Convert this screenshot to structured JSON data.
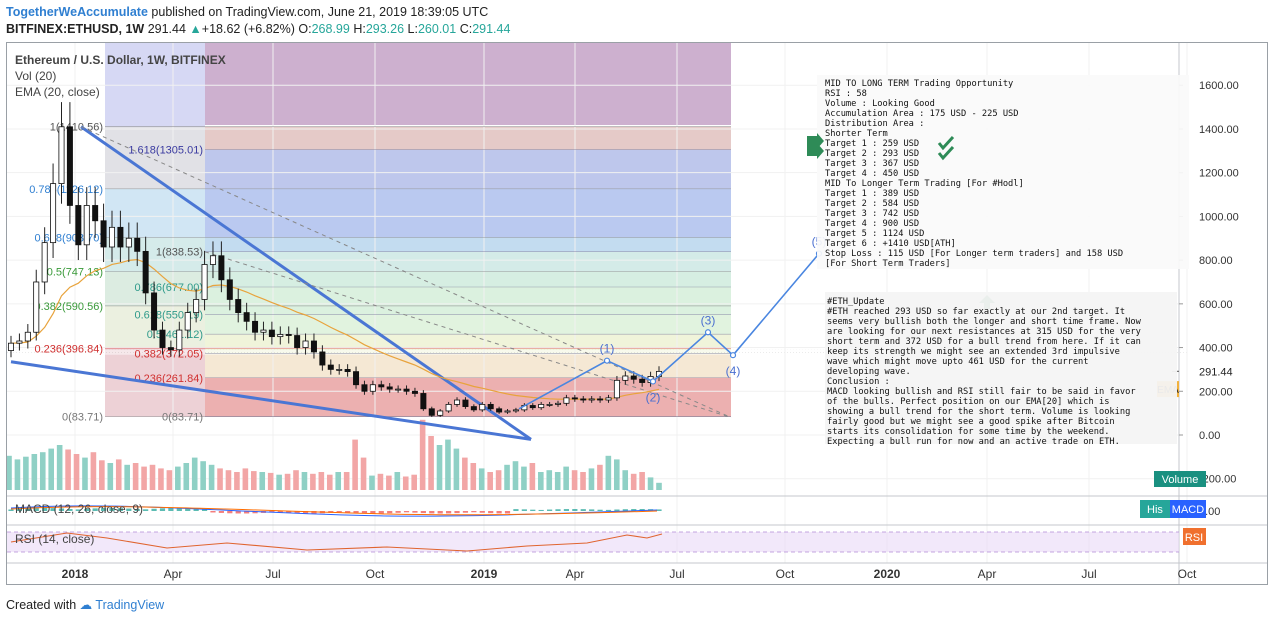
{
  "header": {
    "author": "TogetherWeAccumulate",
    "published": "published on TradingView.com, June 21, 2019 18:39:05 UTC",
    "symbol": "BITFINEX:ETHUSD, 1W",
    "last": "291.44",
    "change": "+18.62 (+6.82%)",
    "o_label": "O:",
    "o_val": "268.99",
    "h_label": "H:",
    "h_val": "293.26",
    "l_label": "L:",
    "l_val": "260.01",
    "c_label": "C:",
    "c_val": "291.44"
  },
  "legend": {
    "title": "Ethereum / U.S. Dollar, 1W, BITFINEX",
    "vol": "Vol (20)",
    "ema": "EMA (20, close)",
    "macd": "MACD (12, 26, close, 9)",
    "rsi": "RSI (14, close)"
  },
  "badges": {
    "price": "291.44",
    "ema": "EMA",
    "volume": "Volume",
    "his": "His",
    "macd": "MACD",
    "rsi": "RSI"
  },
  "fib1": [
    {
      "label": "1(1410.56)",
      "price": 1410.56
    },
    {
      "label": "0.786(1126.12)",
      "price": 1126.12
    },
    {
      "label": "0.618(903.70)",
      "price": 903.7
    },
    {
      "label": "0.5(747.13)",
      "price": 747.13
    },
    {
      "label": "0.382(590.56)",
      "price": 590.56
    },
    {
      "label": "0.236(396.84)",
      "price": 396.84
    },
    {
      "label": "0(83.71)",
      "price": 83.71
    }
  ],
  "fib2": [
    {
      "label": "1.618(1305.01)",
      "price": 1305.01
    },
    {
      "label": "1(838.53)",
      "price": 838.53
    },
    {
      "label": "0.786(677.00)",
      "price": 677.0
    },
    {
      "label": "0.618(550.19)",
      "price": 550.19
    },
    {
      "label": "0.5(461.12)",
      "price": 461.12
    },
    {
      "label": "0.382(372.05)",
      "price": 372.05
    },
    {
      "label": "0.236(261.84)",
      "price": 261.84
    },
    {
      "label": "0(83.71)",
      "price": 83.71
    }
  ],
  "waves": [
    "(1)",
    "(2)",
    "(3)",
    "(4)",
    "(5)"
  ],
  "note1": [
    "MID TO LONG TERM Trading Opportunity",
    "RSI : 58",
    "Volume : Looking Good",
    "Accumulation Area : 175 USD - 225 USD",
    "Distribution Area :",
    "Shorter Term",
    "Target 1 : 259 USD",
    "Target 2 : 293 USD",
    "Target 3 : 367 USD",
    "Target 4 : 450 USD",
    "MID To Longer Term Trading [For #Hodl]",
    "Target 1 : 389 USD",
    "Target 2 : 584 USD",
    "Target 3 : 742 USD",
    "Target 4 : 900 USD",
    "Target 5 : 1124 USD",
    "Target 6 : +1410 USD[ATH]",
    "Stop Loss : 115 USD [For Longer term traders] and 158 USD",
    "[For Short Term Traders]"
  ],
  "note2": [
    "#ETH_Update",
    "#ETH reached 293 USD so far exactly at our 2nd target. It",
    "seems very bullish both the longer and short time frame. Now",
    "are looking for our next resistances at 315 USD for the very",
    "short term and 372 USD for a bull trend from here. If it can",
    "keep its strength we might see an extended 3rd impulsive",
    "wave which might move upto 461 USD for the current",
    "developing wave.",
    "Conclusion :",
    "MACD looking bullish and RSI still fair to be said in favor",
    "of the bulls. Perfect position on our EMA[20] which is",
    "showing a bull trend for the short term. Volume is looking",
    "fairly good but we might see a good spike after Bitcoin",
    "starts its consolidation for some time by the weekend.",
    "Expecting a bull run for now and an active trade on ETH."
  ],
  "footer": {
    "created": "Created with",
    "brand": "TradingView"
  },
  "colors": {
    "up": "#26a69a",
    "down": "#000000",
    "ema": "#e8a33c",
    "accent": "#2f7fd1",
    "vol_up": "#8fd0c5",
    "vol_down": "#f2a6a6",
    "rsi": "#e0642f"
  },
  "chart_data": {
    "type": "candlestick",
    "title": "Ethereum / U.S. Dollar, 1W, BITFINEX",
    "x_labels": [
      "2018",
      "Apr",
      "Jul",
      "Oct",
      "2019",
      "Apr",
      "Jul",
      "Oct",
      "2020",
      "Apr",
      "Jul",
      "Oct"
    ],
    "y_ticks": [
      "1600.00",
      "1400.00",
      "1200.00",
      "1000.00",
      "800.00",
      "600.00",
      "400.00",
      "200.00",
      "0.00",
      "-200.00"
    ],
    "ylim": [
      -260,
      1720
    ],
    "macd_ticks": [
      "0.00"
    ],
    "close_series": [
      420,
      430,
      470,
      700,
      880,
      1150,
      1410,
      1050,
      870,
      1050,
      980,
      860,
      950,
      860,
      900,
      840,
      650,
      480,
      400,
      390,
      480,
      560,
      620,
      780,
      820,
      710,
      620,
      560,
      520,
      470,
      480,
      450,
      460,
      455,
      400,
      430,
      380,
      320,
      300,
      300,
      290,
      230,
      200,
      230,
      220,
      210,
      210,
      200,
      190,
      120,
      90,
      110,
      140,
      160,
      130,
      115,
      140,
      120,
      105,
      110,
      115,
      135,
      125,
      140,
      140,
      145,
      170,
      165,
      160,
      165,
      160,
      170,
      250,
      270,
      255,
      240,
      268,
      291
    ],
    "volume_series": [
      0.38,
      0.34,
      0.37,
      0.4,
      0.42,
      0.46,
      0.5,
      0.45,
      0.4,
      0.36,
      0.42,
      0.33,
      0.3,
      0.34,
      0.28,
      0.3,
      0.26,
      0.28,
      0.24,
      0.22,
      0.26,
      0.3,
      0.36,
      0.32,
      0.28,
      0.24,
      0.22,
      0.2,
      0.24,
      0.21,
      0.2,
      0.19,
      0.17,
      0.18,
      0.22,
      0.2,
      0.18,
      0.2,
      0.17,
      0.2,
      0.2,
      0.56,
      0.36,
      0.16,
      0.18,
      0.16,
      0.2,
      0.15,
      0.17,
      0.78,
      0.6,
      0.5,
      0.56,
      0.46,
      0.36,
      0.3,
      0.24,
      0.2,
      0.22,
      0.28,
      0.32,
      0.26,
      0.3,
      0.2,
      0.22,
      0.2,
      0.26,
      0.22,
      0.2,
      0.24,
      0.28,
      0.38,
      0.34,
      0.22,
      0.18,
      0.2,
      0.14,
      0.08
    ],
    "projection": [
      {
        "label": "(1)",
        "price": 340
      },
      {
        "label": "(2)",
        "price": 245
      },
      {
        "label": "(3)",
        "price": 470
      },
      {
        "label": "(4)",
        "price": 365
      },
      {
        "label": "(5)",
        "price": 830
      }
    ]
  }
}
